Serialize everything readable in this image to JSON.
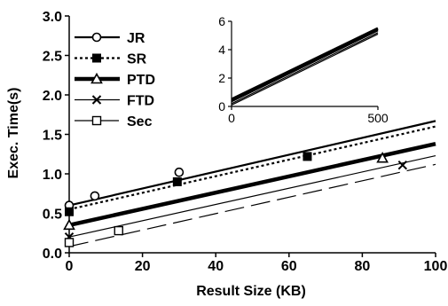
{
  "chart_data": [
    {
      "type": "line",
      "xlabel": "Result Size (KB)",
      "ylabel": "Exec. Time(s)",
      "xlim": [
        0,
        100
      ],
      "ylim": [
        0,
        3.0
      ],
      "x_ticks": [
        "0",
        "20",
        "40",
        "60",
        "80",
        "100"
      ],
      "y_ticks": [
        "0.0",
        "0.5",
        "1.0",
        "1.5",
        "2.0",
        "2.5",
        "3.0"
      ],
      "legend_position": "top-left",
      "grid": false,
      "series": [
        {
          "name": "JR",
          "line": "solid",
          "width": "medium",
          "marker": "circle-open",
          "x": [
            0,
            100
          ],
          "y": [
            0.6,
            1.67
          ],
          "marker_points": [
            [
              0,
              0.6
            ],
            [
              7,
              0.72
            ],
            [
              30,
              1.02
            ]
          ]
        },
        {
          "name": "SR",
          "line": "dotted",
          "width": "medium",
          "marker": "square-filled",
          "x": [
            0,
            100
          ],
          "y": [
            0.55,
            1.6
          ],
          "marker_points": [
            [
              0,
              0.52
            ],
            [
              29.5,
              0.9
            ],
            [
              65,
              1.22
            ]
          ]
        },
        {
          "name": "PTD",
          "line": "solid",
          "width": "thick",
          "marker": "triangle-open",
          "x": [
            0,
            100
          ],
          "y": [
            0.35,
            1.38
          ],
          "marker_points": [
            [
              0,
              0.35
            ],
            [
              85.5,
              1.2
            ]
          ]
        },
        {
          "name": "FTD",
          "line": "solid",
          "width": "thin",
          "marker": "x",
          "x": [
            0,
            100
          ],
          "y": [
            0.2,
            1.23
          ],
          "marker_points": [
            [
              0,
              0.2
            ],
            [
              91,
              1.11
            ]
          ]
        },
        {
          "name": "Sec",
          "line": "long-dash",
          "width": "thin",
          "marker": "square-open",
          "x": [
            0,
            100
          ],
          "y": [
            0.08,
            1.12
          ],
          "marker_points": [
            [
              0,
              0.13
            ],
            [
              13.5,
              0.28
            ]
          ]
        }
      ]
    },
    {
      "type": "line",
      "inset": true,
      "xlim": [
        0,
        500
      ],
      "ylim": [
        0,
        6
      ],
      "x_ticks": [
        "0",
        "500"
      ],
      "y_ticks": [
        "0",
        "2",
        "4",
        "6"
      ],
      "series": [
        {
          "x": [
            0,
            500
          ],
          "y": [
            0.5,
            5.5
          ]
        },
        {
          "x": [
            0,
            500
          ],
          "y": [
            0.4,
            5.4
          ]
        },
        {
          "x": [
            0,
            500
          ],
          "y": [
            0.35,
            5.35
          ]
        },
        {
          "x": [
            0,
            500
          ],
          "y": [
            0.2,
            5.2
          ]
        },
        {
          "x": [
            0,
            500
          ],
          "y": [
            0.1,
            5.1
          ]
        }
      ]
    }
  ]
}
